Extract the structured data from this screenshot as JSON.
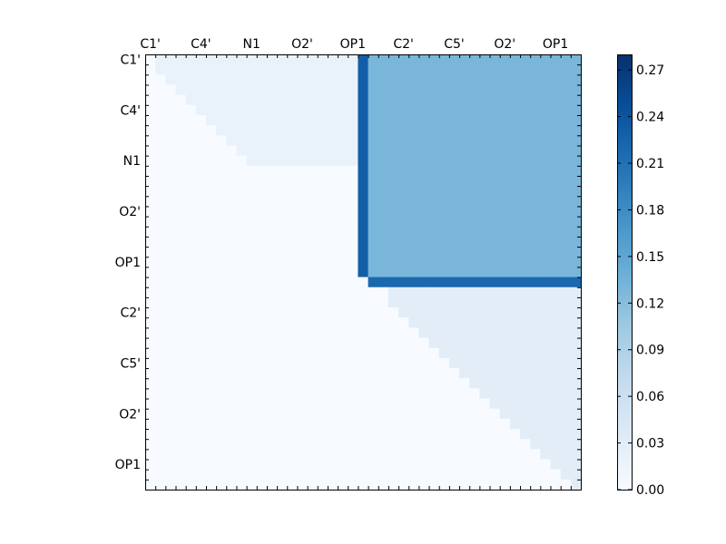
{
  "chart_data": {
    "type": "heatmap",
    "title": "",
    "xlabel": "",
    "ylabel": "",
    "rows": 43,
    "cols": 43,
    "row_tick_labels": [
      "C1'",
      "C4'",
      "N1",
      "O2'",
      "OP1",
      "C2'",
      "C5'",
      "O2'",
      "OP1"
    ],
    "col_tick_labels": [
      "C1'",
      "C4'",
      "N1",
      "O2'",
      "OP1",
      "C2'",
      "C5'",
      "O2'",
      "OP1"
    ],
    "tick_label_indices": [
      0,
      5,
      10,
      15,
      20,
      25,
      30,
      35,
      40
    ],
    "colorbar": {
      "min": 0.0,
      "max": 0.28,
      "ticks": [
        0.0,
        0.03,
        0.06,
        0.09,
        0.12,
        0.15,
        0.18,
        0.21,
        0.24,
        0.27
      ],
      "tick_labels": [
        "0.00",
        "0.03",
        "0.06",
        "0.09",
        "0.12",
        "0.15",
        "0.18",
        "0.21",
        "0.24",
        "0.27"
      ],
      "colormap": "Blues",
      "colors": [
        "#f7fbff",
        "#deebf7",
        "#c6dbef",
        "#9ecae1",
        "#6baed6",
        "#4292c6",
        "#2171b5",
        "#08519c",
        "#08306b"
      ]
    },
    "value_description": "Upper-triangular heatmap; lower triangle is zero",
    "regions": [
      {
        "rows": [
          0,
          10
        ],
        "cols": [
          1,
          20
        ],
        "value": 0.02
      },
      {
        "rows": [
          0,
          21
        ],
        "cols": [
          21,
          22
        ],
        "value": 0.23
      },
      {
        "rows": [
          0,
          21
        ],
        "cols": [
          22,
          42
        ],
        "value": 0.13
      },
      {
        "rows": [
          22,
          22
        ],
        "cols": [
          22,
          42
        ],
        "value": 0.22
      },
      {
        "rows": [
          23,
          42
        ],
        "cols": [
          24,
          42
        ],
        "value": 0.03
      }
    ]
  }
}
